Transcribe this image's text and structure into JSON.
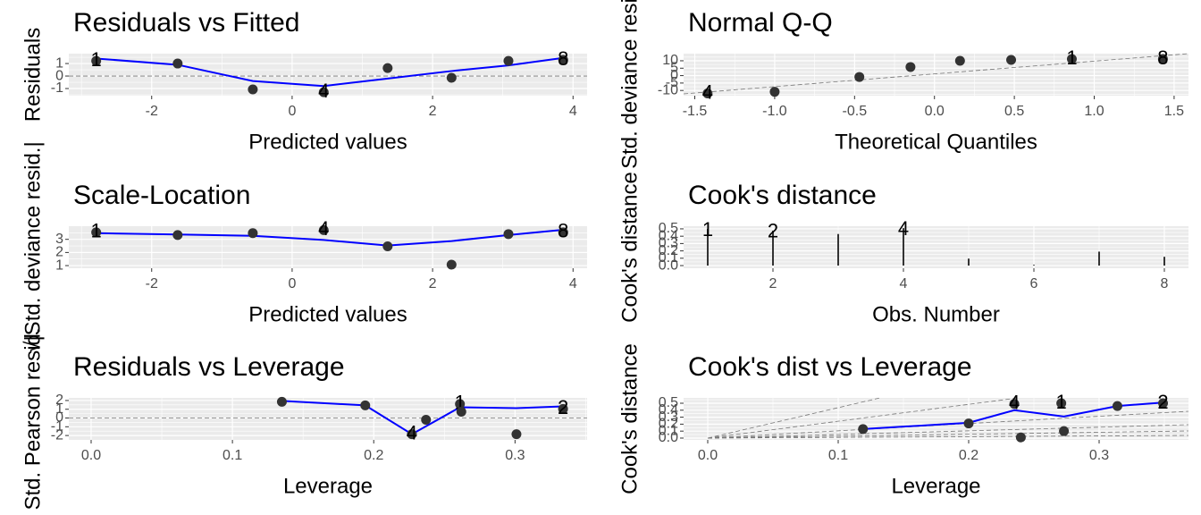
{
  "chart_data": [
    {
      "type": "scatter",
      "title": "Residuals vs Fitted",
      "x_label": "Predicted values",
      "y_label": "Residuals",
      "x": [
        -2.79,
        -1.63,
        -0.56,
        0.45,
        1.36,
        2.27,
        3.08,
        3.86
      ],
      "values": [
        1.21,
        1.0,
        -1.07,
        -1.29,
        0.64,
        -0.14,
        1.21,
        1.29
      ],
      "point_labels": [
        "1",
        null,
        null,
        "4",
        null,
        null,
        null,
        "8"
      ],
      "color": "#333333",
      "smooth": {
        "color": "#0000ff",
        "x": [
          -2.79,
          -1.63,
          -0.56,
          0.45,
          1.36,
          2.27,
          3.08,
          3.86
        ],
        "values": [
          1.4,
          0.9,
          -0.4,
          -0.8,
          -0.2,
          0.4,
          0.85,
          1.45
        ]
      },
      "hline": 0,
      "xlim": [
        -3.18,
        4.2
      ],
      "ylim": [
        -1.57,
        1.79
      ],
      "xticks": [
        -2,
        0,
        2,
        4
      ],
      "yticks": [
        -1,
        0,
        1
      ]
    },
    {
      "type": "scatter",
      "title": "Normal Q-Q",
      "x_label": "Theoretical Quantiles",
      "y_label": "Std. deviance resid.",
      "x": [
        -1.42,
        -1.0,
        -0.47,
        -0.15,
        0.16,
        0.48,
        0.86,
        1.43
      ],
      "values": [
        -12,
        -10.9,
        -0.9,
        5.8,
        10,
        10.6,
        11.2,
        11.2
      ],
      "point_labels": [
        "4",
        null,
        null,
        null,
        null,
        null,
        "1",
        "8"
      ],
      "color": "#333333",
      "xlim": [
        -1.57,
        1.59
      ],
      "ylim": [
        -13.5,
        14.8
      ],
      "xticks": [
        -1.5,
        {
          "value": -1,
          "label": "-1.0"
        },
        -0.5,
        {
          "value": 0,
          "label": "0.0"
        },
        0.5,
        {
          "value": 1,
          "label": "1.0"
        },
        1.5
      ],
      "yticks": [
        -10,
        -5,
        0,
        5,
        10
      ]
    },
    {
      "type": "scatter",
      "title": "Scale-Location",
      "x_label": "Predicted values",
      "y_label": "√|Std. deviance resid.|",
      "x": [
        -2.79,
        -1.63,
        -0.56,
        0.45,
        1.36,
        2.27,
        3.08,
        3.86
      ],
      "values": [
        3.53,
        3.33,
        3.47,
        3.7,
        2.47,
        1.07,
        3.4,
        3.53
      ],
      "point_labels": [
        "1",
        null,
        null,
        "4",
        null,
        null,
        null,
        "8"
      ],
      "color": "#333333",
      "smooth": {
        "color": "#0000ff",
        "x": [
          -2.79,
          -1.63,
          -0.56,
          0.45,
          1.36,
          2.27,
          3.08,
          3.86
        ],
        "values": [
          3.47,
          3.37,
          3.27,
          2.95,
          2.53,
          2.87,
          3.33,
          3.73
        ]
      },
      "xlim": [
        -3.18,
        4.2
      ],
      "ylim": [
        0.8,
        4.0
      ],
      "xticks": [
        -2,
        0,
        2,
        4
      ],
      "yticks": [
        1,
        2,
        3
      ]
    },
    {
      "type": "bar",
      "title": "Cook's distance",
      "x_label": "Obs. Number",
      "y_label": "Cook's distance",
      "x": [
        1,
        2,
        3,
        4,
        5,
        6,
        7,
        8
      ],
      "values": [
        0.5,
        0.476,
        0.43,
        0.51,
        0.095,
        0.01,
        0.19,
        0.12
      ],
      "point_labels": [
        "1",
        "2",
        null,
        "4",
        null,
        null,
        null,
        null
      ],
      "color": "#333333",
      "xlim": [
        0.63,
        8.37
      ],
      "ylim": [
        -0.036,
        0.536
      ],
      "xticks": [
        2,
        4,
        6,
        8
      ],
      "yticks": [
        {
          "value": 0,
          "label": "0.0"
        },
        0.1,
        0.2,
        0.3,
        0.4,
        0.5
      ]
    },
    {
      "type": "scatter",
      "title": "Residuals vs Leverage",
      "x_label": "Leverage",
      "y_label": "Std. Pearson resid.",
      "x": [
        0.135,
        0.194,
        0.227,
        0.237,
        0.261,
        0.262,
        0.301,
        0.334
      ],
      "values": [
        1.85,
        1.44,
        -1.85,
        -0.2,
        1.6,
        0.72,
        -1.85,
        1.03
      ],
      "point_labels": [
        null,
        null,
        "4",
        null,
        "1",
        null,
        null,
        "2"
      ],
      "color": "#333333",
      "smooth": {
        "color": "#0000ff",
        "x": [
          0.135,
          0.194,
          0.227,
          0.261,
          0.301,
          0.334
        ],
        "values": [
          1.95,
          1.44,
          -1.85,
          1.23,
          1.13,
          1.33
        ]
      },
      "hline": 0,
      "xlim": [
        -0.0158,
        0.351
      ],
      "ylim": [
        -2.5,
        2.3
      ],
      "xticks": [
        {
          "value": 0,
          "label": "0.0"
        },
        0.1,
        0.2,
        0.3
      ],
      "yticks": [
        -2,
        -1,
        0,
        1,
        2
      ]
    },
    {
      "type": "scatter",
      "title": "Cook's dist vs Leverage",
      "x_label": "Leverage",
      "y_label": "Cook's distance",
      "x": [
        0.119,
        0.2,
        0.235,
        0.24,
        0.271,
        0.273,
        0.314,
        0.349
      ],
      "values": [
        0.13,
        0.21,
        0.49,
        0.01,
        0.5,
        0.1,
        0.46,
        0.5
      ],
      "point_labels": [
        null,
        null,
        "4",
        null,
        "1",
        null,
        null,
        "2"
      ],
      "color": "#333333",
      "smooth": {
        "color": "#0000ff",
        "x": [
          0.119,
          0.2,
          0.235,
          0.273,
          0.314,
          0.349
        ],
        "values": [
          0.13,
          0.22,
          0.4,
          0.31,
          0.46,
          0.51
        ]
      },
      "xlim": [
        -0.0185,
        0.3685
      ],
      "ylim": [
        -0.026,
        0.577
      ],
      "xticks": [
        {
          "value": 0,
          "label": "0.0"
        },
        0.1,
        0.2,
        0.3
      ],
      "yticks": [
        {
          "value": 0,
          "label": "0.0"
        },
        0.1,
        0.2,
        0.3,
        0.4,
        0.5
      ]
    }
  ]
}
